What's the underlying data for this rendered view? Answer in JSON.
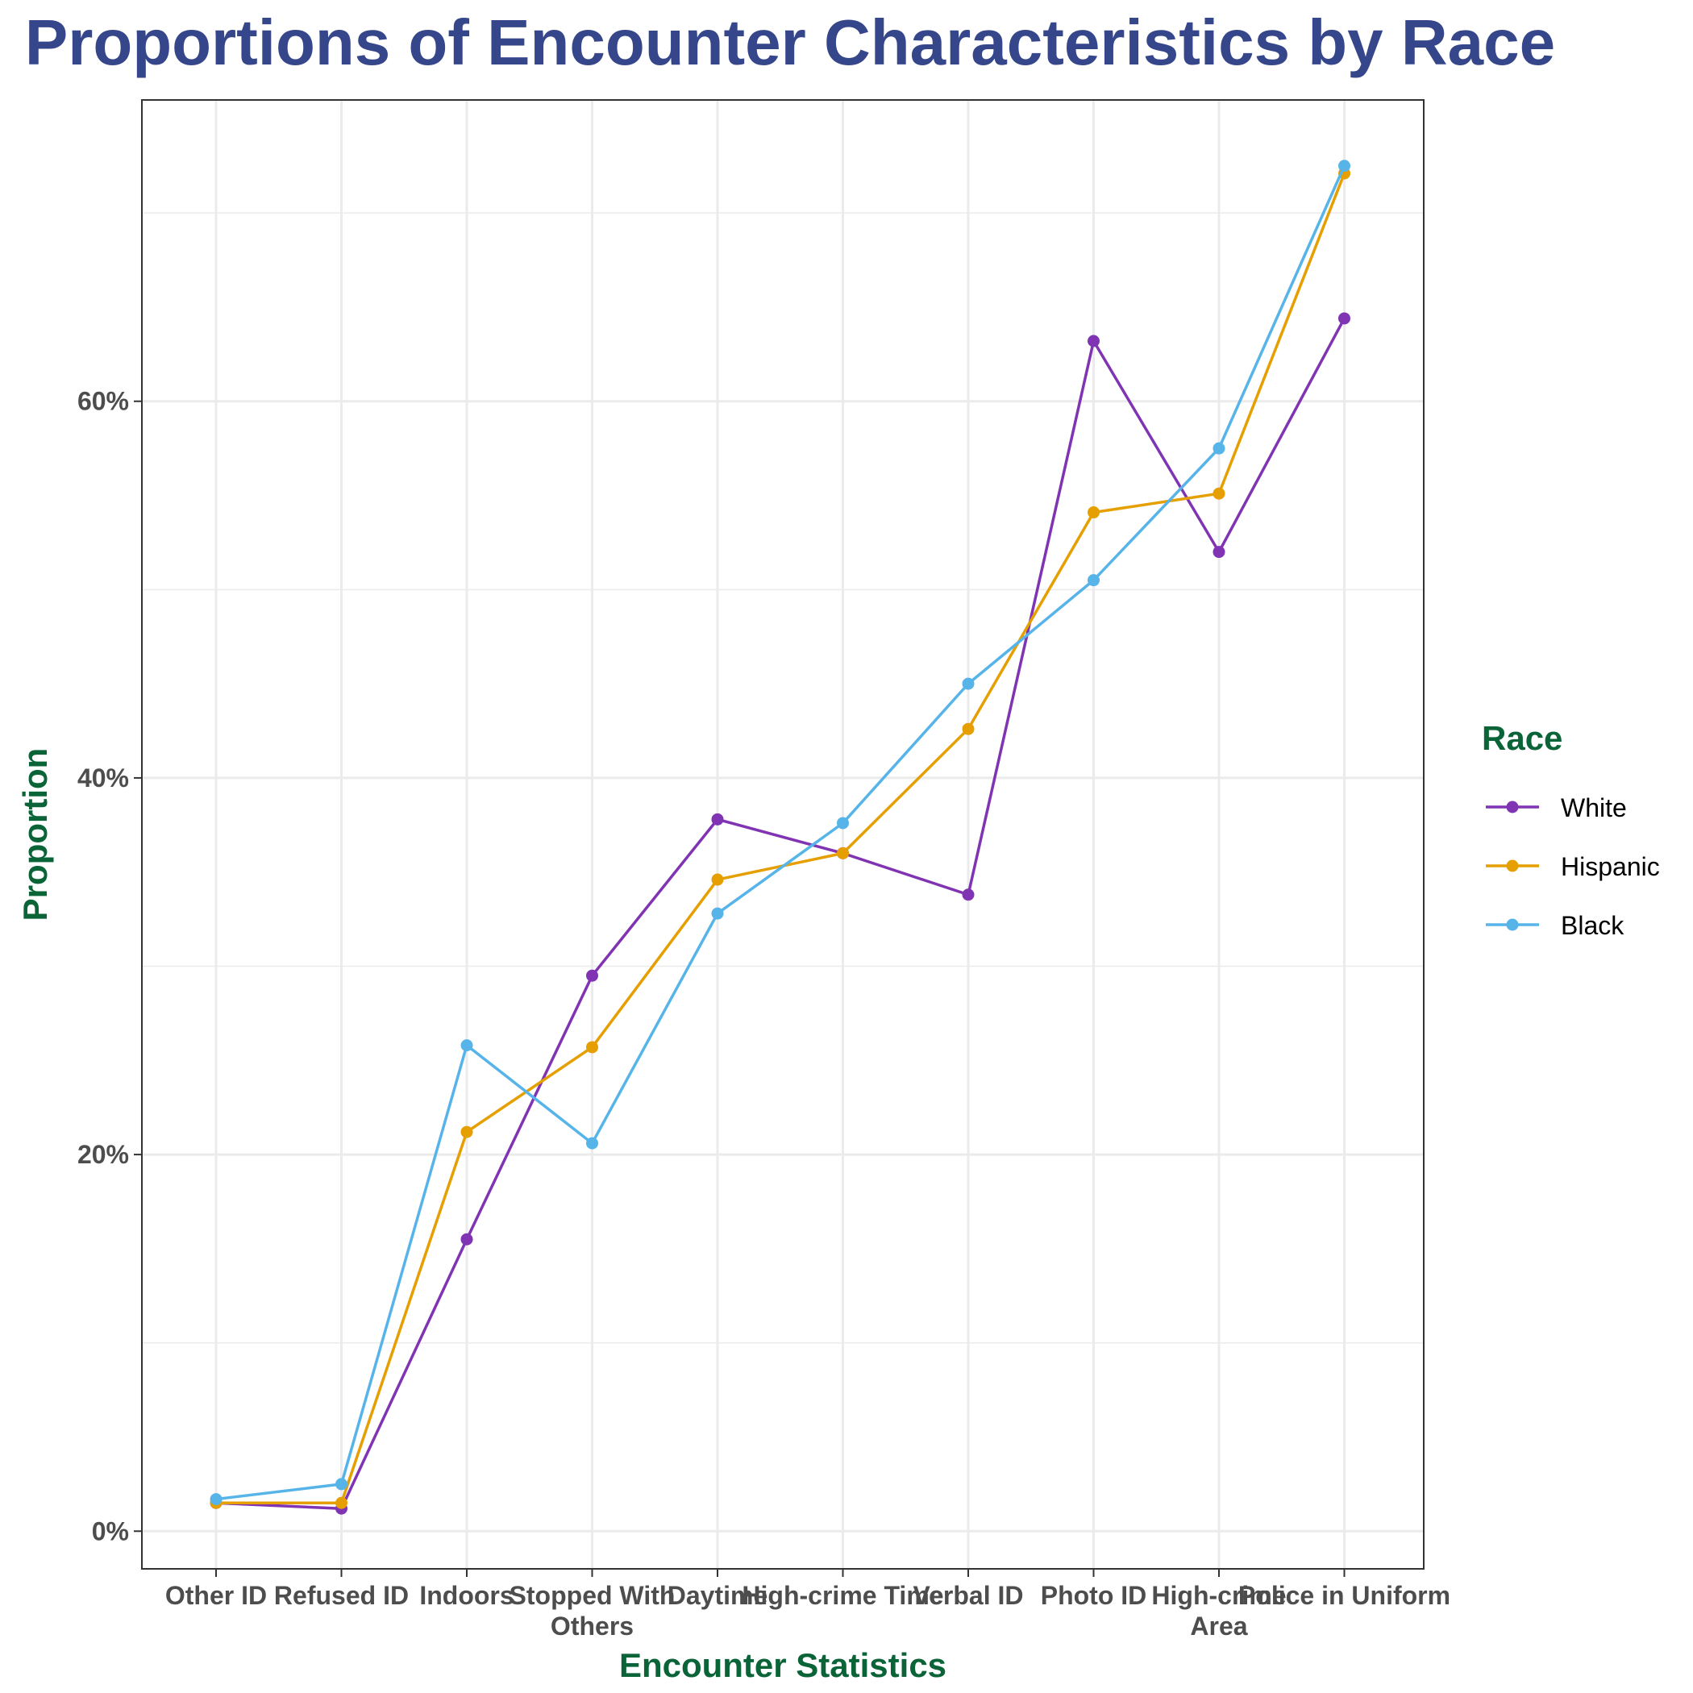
{
  "chart_data": {
    "type": "line",
    "title": "Proportions of Encounter Characteristics by Race",
    "xlabel": "Encounter Statistics",
    "ylabel": "Proportion",
    "categories": [
      [
        "Other ID"
      ],
      [
        "Refused ID"
      ],
      [
        "Indoors"
      ],
      [
        "Stopped With",
        "Others"
      ],
      [
        "Daytime"
      ],
      [
        "High-crime Time"
      ],
      [
        "Verbal ID"
      ],
      [
        "Photo ID"
      ],
      [
        "High-crime",
        "Area"
      ],
      [
        "Police in Uniform"
      ]
    ],
    "yticks": [
      0,
      0.2,
      0.4,
      0.6
    ],
    "ytick_labels": [
      "0%",
      "20%",
      "40%",
      "60%"
    ],
    "ylim": [
      -0.02,
      0.76
    ],
    "grid": true,
    "legend": {
      "title": "Race",
      "position": "right"
    },
    "series": [
      {
        "name": "White",
        "color": "#8034b3",
        "values": [
          0.015,
          0.012,
          0.155,
          0.295,
          0.378,
          0.36,
          0.338,
          0.632,
          0.52,
          0.644
        ]
      },
      {
        "name": "Hispanic",
        "color": "#e69f00",
        "values": [
          0.015,
          0.015,
          0.212,
          0.257,
          0.346,
          0.36,
          0.426,
          0.541,
          0.551,
          0.721
        ]
      },
      {
        "name": "Black",
        "color": "#56b4e9",
        "values": [
          0.017,
          0.025,
          0.258,
          0.206,
          0.328,
          0.376,
          0.45,
          0.505,
          0.575,
          0.725
        ]
      }
    ]
  },
  "colors": {
    "title": "#36468a",
    "axis_title": "#0b6338",
    "grid": "#ebebeb",
    "panel_border": "#333333"
  }
}
